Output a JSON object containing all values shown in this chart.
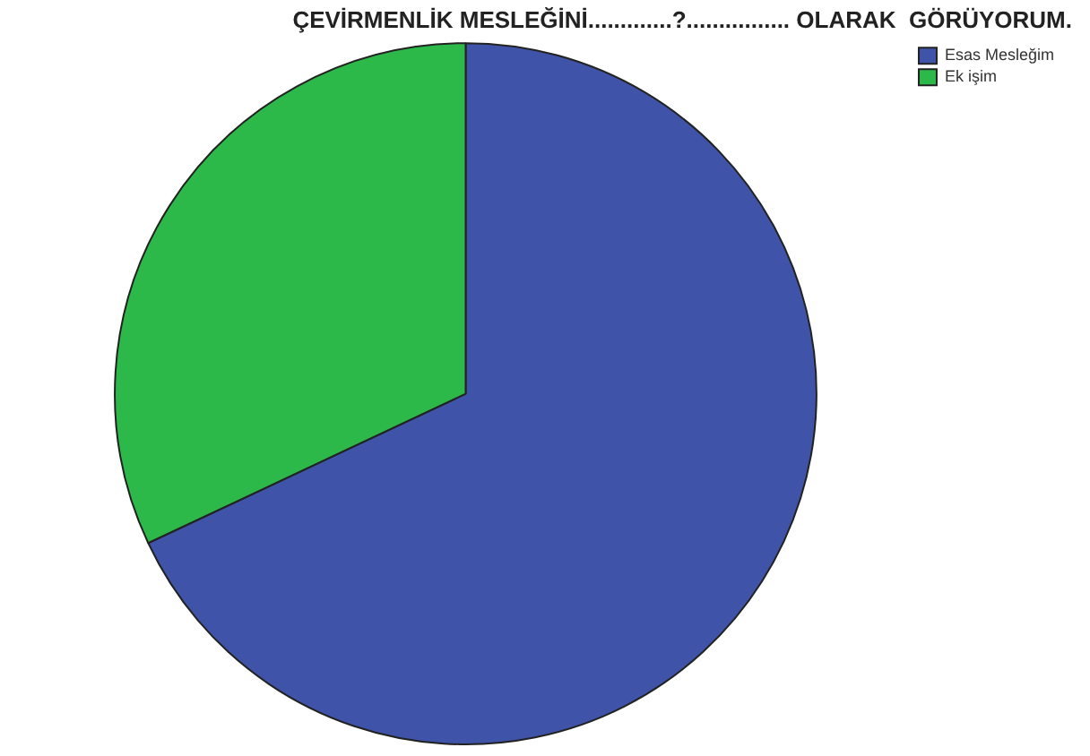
{
  "chart_data": {
    "type": "pie",
    "title": "ÇEVİRMENLİK MESLEĞİNİ.............?................ OLARAK  GÖRÜYORUM.",
    "categories": [
      "Esas Mesleğim",
      "Ek işim"
    ],
    "values": [
      68,
      32
    ],
    "colors": [
      "#3f54a8",
      "#2db84a"
    ],
    "legend": "top right"
  }
}
